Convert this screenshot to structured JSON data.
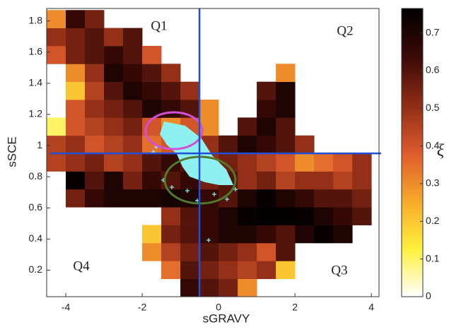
{
  "chart_data": {
    "type": "heatmap",
    "xlabel": "sGRAVY",
    "ylabel": "sSCE",
    "colorbar_label": "ξ",
    "xlim": [
      -4.5,
      4.2
    ],
    "ylim": [
      0.03,
      1.88
    ],
    "xticks": [
      -4,
      -2,
      0,
      2,
      4
    ],
    "yticks": [
      0.2,
      0.4,
      0.6,
      0.8,
      1,
      1.2,
      1.4,
      1.6,
      1.8
    ],
    "clim": [
      0,
      0.765
    ],
    "cticks": [
      0,
      0.1,
      0.2,
      0.3,
      0.4,
      0.5,
      0.6,
      0.7
    ],
    "colormap": [
      "#ffffff",
      "#fff03c",
      "#f7a82a",
      "#dd5a2c",
      "#8e2c16",
      "#3a0a06",
      "#000000"
    ],
    "xbins": [
      -4.5,
      -4,
      -3.5,
      -3,
      -2.5,
      -2,
      -1.5,
      -1,
      -0.5,
      0,
      0.5,
      1,
      1.5,
      2,
      2.5,
      3,
      3.5,
      4
    ],
    "ybins": [
      0.03,
      0.145,
      0.26,
      0.375,
      0.49,
      0.605,
      0.72,
      0.835,
      0.95,
      1.065,
      1.18,
      1.295,
      1.41,
      1.525,
      1.64,
      1.755,
      1.87
    ],
    "z": [
      [
        null,
        null,
        null,
        null,
        null,
        null,
        null,
        0.65,
        0.6,
        0.55,
        0.3,
        null,
        null,
        null,
        null,
        null,
        null
      ],
      [
        null,
        null,
        null,
        null,
        null,
        null,
        0.35,
        0.6,
        0.55,
        0.5,
        0.45,
        0.5,
        0.2,
        null,
        null,
        null,
        null
      ],
      [
        null,
        null,
        null,
        null,
        null,
        0.3,
        0.45,
        0.55,
        0.6,
        0.55,
        0.5,
        0.4,
        0.6,
        null,
        null,
        null,
        null
      ],
      [
        null,
        null,
        null,
        null,
        null,
        0.2,
        0.55,
        0.6,
        0.65,
        0.7,
        0.7,
        0.65,
        0.6,
        0.7,
        0.75,
        0.7,
        null
      ],
      [
        null,
        null,
        null,
        null,
        null,
        null,
        0.5,
        0.6,
        0.65,
        0.7,
        0.75,
        0.76,
        0.76,
        0.75,
        0.7,
        0.65,
        0.6
      ],
      [
        null,
        0.55,
        0.65,
        0.7,
        0.7,
        0.7,
        0.72,
        0.7,
        0.65,
        0.6,
        0.7,
        0.75,
        0.7,
        0.65,
        0.6,
        0.6,
        0.55
      ],
      [
        null,
        0.75,
        0.6,
        0.7,
        0.55,
        0.65,
        0.6,
        0.65,
        0.55,
        0.6,
        0.5,
        0.55,
        0.45,
        0.5,
        0.5,
        0.45,
        0.5
      ],
      [
        0.45,
        0.5,
        0.55,
        0.45,
        0.5,
        0.6,
        0.65,
        0.6,
        0.5,
        0.55,
        0.5,
        0.45,
        0.4,
        0.3,
        0.35,
        0.4,
        0.5
      ],
      [
        0.45,
        0.5,
        0.4,
        0.45,
        0.5,
        0.35,
        0.4,
        0.45,
        0.5,
        0.6,
        0.7,
        0.65,
        0.6,
        0.5,
        null,
        null,
        null
      ],
      [
        0.1,
        0.4,
        0.45,
        0.5,
        0.55,
        0.4,
        0.3,
        0.4,
        0.3,
        null,
        0.6,
        0.7,
        0.6,
        null,
        null,
        null,
        null
      ],
      [
        null,
        0.4,
        0.5,
        0.55,
        0.6,
        0.7,
        0.65,
        0.6,
        0.3,
        null,
        null,
        0.65,
        0.7,
        null,
        null,
        null,
        null
      ],
      [
        null,
        0.2,
        0.45,
        0.6,
        0.7,
        0.65,
        0.6,
        0.5,
        null,
        null,
        null,
        0.6,
        0.7,
        null,
        null,
        null,
        null
      ],
      [
        null,
        0.3,
        0.5,
        0.7,
        0.65,
        0.6,
        0.5,
        null,
        null,
        null,
        null,
        null,
        0.3,
        null,
        null,
        null,
        null
      ],
      [
        0.4,
        0.55,
        0.6,
        0.65,
        0.6,
        0.4,
        null,
        null,
        null,
        null,
        null,
        null,
        null,
        null,
        null,
        null,
        null
      ],
      [
        0.5,
        0.55,
        0.6,
        0.5,
        0.6,
        null,
        null,
        null,
        null,
        null,
        null,
        null,
        null,
        null,
        null,
        null,
        null
      ],
      [
        0.3,
        0.65,
        0.55,
        null,
        null,
        null,
        null,
        null,
        null,
        null,
        null,
        null,
        null,
        null,
        null,
        null,
        null
      ]
    ],
    "vline": -0.5,
    "hline": 0.95,
    "line_color": "#1f4fd8",
    "quadrant_labels": [
      "Q1",
      "Q2",
      "Q3",
      "Q4"
    ]
  }
}
